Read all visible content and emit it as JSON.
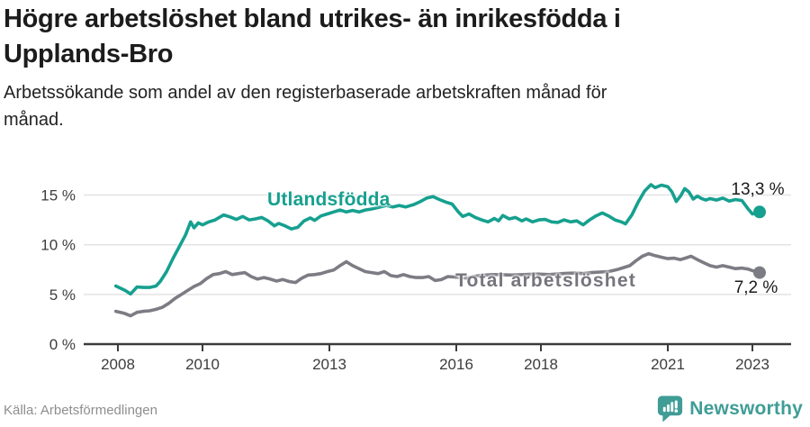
{
  "chart_data": {
    "type": "line",
    "title": "Högre arbetslöshet bland utrikes- än inrikesfödda i\nUpplands-Bro",
    "subtitle": "Arbetssökande som andel av den registerbaserade arbetskraften månad för\nmånad.",
    "unit": "%",
    "grid": true,
    "x_range": [
      2007.95,
      2023.25
    ],
    "ylim": [
      0,
      16.5
    ],
    "x_axis": {
      "ticks": [
        {
          "year": 2008,
          "label": "2008"
        },
        {
          "year": 2010,
          "label": "2010"
        },
        {
          "year": 2013,
          "label": "2013"
        },
        {
          "year": 2016,
          "label": "2016"
        },
        {
          "year": 2018,
          "label": "2018"
        },
        {
          "year": 2021,
          "label": "2021"
        },
        {
          "year": 2023,
          "label": "2023"
        }
      ]
    },
    "y_axis": {
      "ticks": [
        {
          "value": 0,
          "label": "0 %"
        },
        {
          "value": 5,
          "label": "5 %"
        },
        {
          "value": 10,
          "label": "10 %"
        },
        {
          "value": 15,
          "label": "15 %"
        }
      ]
    },
    "series": [
      {
        "name": "Utlandsfödda",
        "color": "#16a08f",
        "end_value": 13.3,
        "end_label": "13,3 %",
        "points": [
          [
            2007.95,
            5.85
          ],
          [
            2008.17,
            5.4
          ],
          [
            2008.3,
            5.05
          ],
          [
            2008.45,
            5.75
          ],
          [
            2008.6,
            5.7
          ],
          [
            2008.75,
            5.7
          ],
          [
            2008.9,
            5.85
          ],
          [
            2009.0,
            6.3
          ],
          [
            2009.15,
            7.3
          ],
          [
            2009.3,
            8.6
          ],
          [
            2009.45,
            9.8
          ],
          [
            2009.6,
            11.0
          ],
          [
            2009.72,
            12.3
          ],
          [
            2009.8,
            11.7
          ],
          [
            2009.9,
            12.2
          ],
          [
            2010.0,
            12.0
          ],
          [
            2010.15,
            12.3
          ],
          [
            2010.3,
            12.5
          ],
          [
            2010.5,
            13.0
          ],
          [
            2010.65,
            12.8
          ],
          [
            2010.8,
            12.55
          ],
          [
            2010.95,
            12.85
          ],
          [
            2011.1,
            12.5
          ],
          [
            2011.25,
            12.6
          ],
          [
            2011.4,
            12.75
          ],
          [
            2011.55,
            12.4
          ],
          [
            2011.7,
            11.9
          ],
          [
            2011.8,
            12.15
          ],
          [
            2011.95,
            11.9
          ],
          [
            2012.1,
            11.6
          ],
          [
            2012.25,
            11.75
          ],
          [
            2012.4,
            12.4
          ],
          [
            2012.55,
            12.7
          ],
          [
            2012.65,
            12.45
          ],
          [
            2012.8,
            12.9
          ],
          [
            2012.95,
            13.1
          ],
          [
            2013.1,
            13.3
          ],
          [
            2013.25,
            13.5
          ],
          [
            2013.4,
            13.3
          ],
          [
            2013.55,
            13.45
          ],
          [
            2013.7,
            13.3
          ],
          [
            2013.85,
            13.5
          ],
          [
            2014.0,
            13.6
          ],
          [
            2014.2,
            13.8
          ],
          [
            2014.35,
            13.95
          ],
          [
            2014.5,
            13.8
          ],
          [
            2014.65,
            13.95
          ],
          [
            2014.8,
            13.8
          ],
          [
            2015.0,
            14.05
          ],
          [
            2015.15,
            14.35
          ],
          [
            2015.3,
            14.7
          ],
          [
            2015.45,
            14.85
          ],
          [
            2015.6,
            14.55
          ],
          [
            2015.75,
            14.3
          ],
          [
            2015.9,
            14.1
          ],
          [
            2016.05,
            13.3
          ],
          [
            2016.15,
            12.85
          ],
          [
            2016.3,
            13.1
          ],
          [
            2016.45,
            12.75
          ],
          [
            2016.6,
            12.5
          ],
          [
            2016.75,
            12.3
          ],
          [
            2016.9,
            12.65
          ],
          [
            2017.0,
            12.4
          ],
          [
            2017.1,
            12.95
          ],
          [
            2017.25,
            12.6
          ],
          [
            2017.4,
            12.75
          ],
          [
            2017.55,
            12.4
          ],
          [
            2017.65,
            12.6
          ],
          [
            2017.8,
            12.3
          ],
          [
            2017.95,
            12.5
          ],
          [
            2018.1,
            12.55
          ],
          [
            2018.25,
            12.3
          ],
          [
            2018.4,
            12.25
          ],
          [
            2018.55,
            12.5
          ],
          [
            2018.7,
            12.3
          ],
          [
            2018.85,
            12.4
          ],
          [
            2019.0,
            12.0
          ],
          [
            2019.15,
            12.5
          ],
          [
            2019.3,
            12.9
          ],
          [
            2019.45,
            13.2
          ],
          [
            2019.6,
            12.9
          ],
          [
            2019.75,
            12.5
          ],
          [
            2019.9,
            12.3
          ],
          [
            2020.0,
            12.1
          ],
          [
            2020.15,
            13.0
          ],
          [
            2020.3,
            14.3
          ],
          [
            2020.45,
            15.4
          ],
          [
            2020.6,
            16.05
          ],
          [
            2020.7,
            15.75
          ],
          [
            2020.85,
            16.0
          ],
          [
            2021.0,
            15.85
          ],
          [
            2021.1,
            15.3
          ],
          [
            2021.2,
            14.35
          ],
          [
            2021.3,
            14.9
          ],
          [
            2021.4,
            15.65
          ],
          [
            2021.5,
            15.3
          ],
          [
            2021.6,
            14.6
          ],
          [
            2021.7,
            14.9
          ],
          [
            2021.8,
            14.65
          ],
          [
            2021.9,
            14.5
          ],
          [
            2022.0,
            14.65
          ],
          [
            2022.15,
            14.5
          ],
          [
            2022.3,
            14.7
          ],
          [
            2022.45,
            14.4
          ],
          [
            2022.6,
            14.55
          ],
          [
            2022.75,
            14.45
          ],
          [
            2022.9,
            13.6
          ],
          [
            2023.0,
            13.1
          ],
          [
            2023.17,
            13.3
          ]
        ]
      },
      {
        "name": "Total arbetslöshet",
        "color": "#7c7c84",
        "end_value": 7.2,
        "end_label": "7,2 %",
        "points": [
          [
            2007.95,
            3.3
          ],
          [
            2008.15,
            3.1
          ],
          [
            2008.3,
            2.85
          ],
          [
            2008.45,
            3.2
          ],
          [
            2008.6,
            3.3
          ],
          [
            2008.75,
            3.35
          ],
          [
            2008.9,
            3.5
          ],
          [
            2009.05,
            3.7
          ],
          [
            2009.2,
            4.1
          ],
          [
            2009.35,
            4.6
          ],
          [
            2009.5,
            5.0
          ],
          [
            2009.65,
            5.4
          ],
          [
            2009.8,
            5.8
          ],
          [
            2009.95,
            6.1
          ],
          [
            2010.1,
            6.6
          ],
          [
            2010.25,
            7.0
          ],
          [
            2010.4,
            7.1
          ],
          [
            2010.55,
            7.3
          ],
          [
            2010.7,
            7.0
          ],
          [
            2010.85,
            7.1
          ],
          [
            2011.0,
            7.2
          ],
          [
            2011.15,
            6.8
          ],
          [
            2011.3,
            6.55
          ],
          [
            2011.45,
            6.7
          ],
          [
            2011.6,
            6.55
          ],
          [
            2011.75,
            6.35
          ],
          [
            2011.9,
            6.5
          ],
          [
            2012.05,
            6.3
          ],
          [
            2012.2,
            6.2
          ],
          [
            2012.35,
            6.65
          ],
          [
            2012.5,
            6.95
          ],
          [
            2012.65,
            7.0
          ],
          [
            2012.8,
            7.1
          ],
          [
            2012.95,
            7.3
          ],
          [
            2013.1,
            7.45
          ],
          [
            2013.25,
            7.9
          ],
          [
            2013.4,
            8.3
          ],
          [
            2013.55,
            7.9
          ],
          [
            2013.7,
            7.6
          ],
          [
            2013.85,
            7.3
          ],
          [
            2014.0,
            7.2
          ],
          [
            2014.15,
            7.1
          ],
          [
            2014.3,
            7.3
          ],
          [
            2014.45,
            6.9
          ],
          [
            2014.6,
            6.8
          ],
          [
            2014.75,
            7.0
          ],
          [
            2014.9,
            6.8
          ],
          [
            2015.05,
            6.7
          ],
          [
            2015.2,
            6.7
          ],
          [
            2015.35,
            6.8
          ],
          [
            2015.5,
            6.4
          ],
          [
            2015.65,
            6.5
          ],
          [
            2015.8,
            6.8
          ],
          [
            2015.95,
            6.75
          ],
          [
            2016.1,
            6.7
          ],
          [
            2016.25,
            6.65
          ],
          [
            2016.4,
            6.8
          ],
          [
            2016.55,
            6.9
          ],
          [
            2016.7,
            6.95
          ],
          [
            2016.85,
            7.0
          ],
          [
            2017.0,
            7.0
          ],
          [
            2017.3,
            6.95
          ],
          [
            2017.6,
            7.0
          ],
          [
            2017.9,
            7.05
          ],
          [
            2018.2,
            7.0
          ],
          [
            2018.5,
            7.1
          ],
          [
            2018.8,
            7.15
          ],
          [
            2019.0,
            7.1
          ],
          [
            2019.2,
            7.2
          ],
          [
            2019.4,
            7.25
          ],
          [
            2019.6,
            7.3
          ],
          [
            2019.8,
            7.5
          ],
          [
            2019.95,
            7.7
          ],
          [
            2020.1,
            7.9
          ],
          [
            2020.25,
            8.4
          ],
          [
            2020.4,
            8.85
          ],
          [
            2020.55,
            9.1
          ],
          [
            2020.7,
            8.9
          ],
          [
            2020.85,
            8.75
          ],
          [
            2021.0,
            8.6
          ],
          [
            2021.15,
            8.65
          ],
          [
            2021.3,
            8.5
          ],
          [
            2021.45,
            8.7
          ],
          [
            2021.55,
            8.85
          ],
          [
            2021.7,
            8.5
          ],
          [
            2021.85,
            8.2
          ],
          [
            2022.0,
            7.9
          ],
          [
            2022.15,
            7.75
          ],
          [
            2022.3,
            7.9
          ],
          [
            2022.45,
            7.75
          ],
          [
            2022.6,
            7.6
          ],
          [
            2022.75,
            7.65
          ],
          [
            2022.9,
            7.55
          ],
          [
            2023.0,
            7.4
          ],
          [
            2023.17,
            7.2
          ]
        ]
      }
    ],
    "legend_position": "inline-labels"
  },
  "footer": {
    "source": "Källa: Arbetsförmedlingen",
    "brand": "Newsworthy"
  },
  "colors": {
    "accent_teal": "#16a08f",
    "line_gray": "#7c7c84",
    "grid": "#e3e3e3",
    "axis": "#3b3b3b",
    "tick_text": "#3d3d3d",
    "brand_teal": "#3f9d96"
  }
}
